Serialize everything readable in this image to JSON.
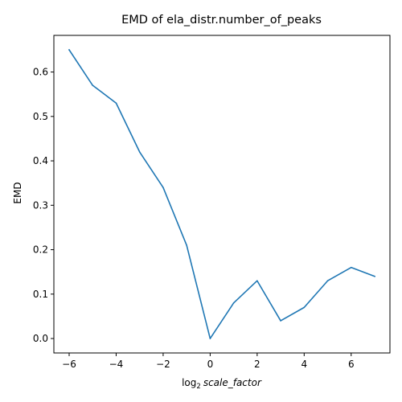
{
  "chart_data": {
    "type": "line",
    "title": "EMD of ela_distr.number_of_peaks",
    "xlabel_prefix": "log",
    "xlabel_sub": "2",
    "xlabel_main": "scale_factor",
    "ylabel": "EMD",
    "xlim": [
      -6.65,
      7.65
    ],
    "ylim": [
      -0.0325,
      0.6825
    ],
    "xticks": [
      -6,
      -4,
      -2,
      0,
      2,
      4,
      6
    ],
    "xtick_labels": [
      "−6",
      "−4",
      "−2",
      "0",
      "2",
      "4",
      "6"
    ],
    "yticks": [
      0.0,
      0.1,
      0.2,
      0.3,
      0.4,
      0.5,
      0.6
    ],
    "ytick_labels": [
      "0.0",
      "0.1",
      "0.2",
      "0.3",
      "0.4",
      "0.5",
      "0.6"
    ],
    "grid": false,
    "series": [
      {
        "color": "#1f77b4",
        "x": [
          -6,
          -5,
          -4,
          -3,
          -2,
          -1,
          0,
          1,
          2,
          3,
          4,
          5,
          6,
          7
        ],
        "y": [
          0.65,
          0.57,
          0.53,
          0.42,
          0.34,
          0.21,
          0.0,
          0.08,
          0.13,
          0.04,
          0.07,
          0.13,
          0.16,
          0.14
        ]
      }
    ]
  }
}
